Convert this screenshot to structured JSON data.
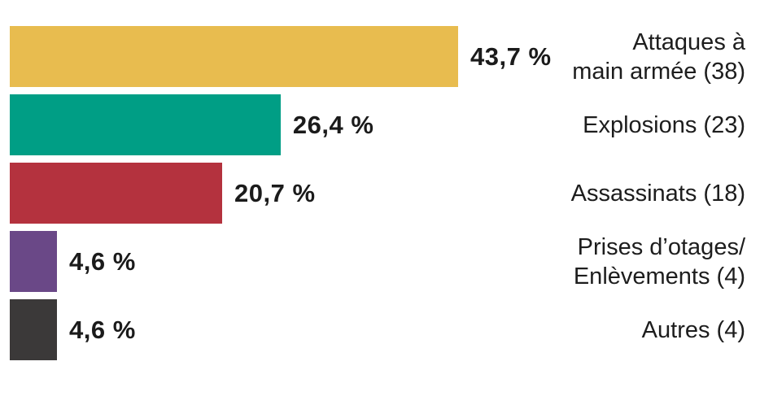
{
  "chart_data": {
    "type": "bar",
    "orientation": "horizontal",
    "title": "",
    "categories": [
      "Attaques à main armée (38)",
      "Explosions (23)",
      "Assassinats (18)",
      "Prises d’otages/Enlèvements (4)",
      "Autres (4)"
    ],
    "values": [
      43.7,
      26.4,
      20.7,
      4.6,
      4.6
    ],
    "counts": [
      38,
      23,
      18,
      4,
      4
    ],
    "value_labels": [
      "43,7 %",
      "26,4 %",
      "20,7 %",
      "4,6 %",
      "4,6 %"
    ],
    "colors": [
      "#E8BC4F",
      "#009E85",
      "#B4323E",
      "#6A4887",
      "#3B3939"
    ],
    "xlim": [
      0,
      43.7
    ],
    "grid": false,
    "legend": false,
    "background": "#FFFFFF"
  },
  "rows": [
    {
      "line1": "Attaques à",
      "line2": "main armée (38)"
    },
    {
      "line1": "Explosions (23)"
    },
    {
      "line1": "Assassinats (18)"
    },
    {
      "line1": "Prises d’otages/",
      "line2": "Enlèvements (4)"
    },
    {
      "line1": "Autres (4)"
    }
  ]
}
